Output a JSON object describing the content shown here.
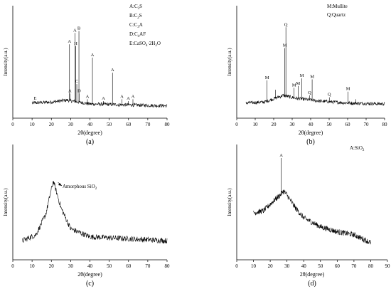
{
  "chart_data": [
    {
      "type": "line",
      "panel_label": "(a)",
      "xlabel": "2θ(degree)",
      "ylabel": "Intensity(a.u.)",
      "xlim": [
        0,
        80
      ],
      "xticks": [
        0,
        10,
        20,
        30,
        40,
        50,
        60,
        70,
        80
      ],
      "ylim": [
        0,
        100
      ],
      "legend": [
        "A:C3S",
        "B:C2S",
        "C:C3A",
        "D:C4AF",
        "E:CaSO4·2H2O"
      ],
      "baseline": [
        [
          10,
          10
        ],
        [
          20,
          11
        ],
        [
          28,
          13
        ],
        [
          40,
          9
        ],
        [
          60,
          8
        ],
        [
          80,
          7
        ]
      ],
      "peaks": [
        {
          "x": 11.6,
          "h": 12,
          "label": "E"
        },
        {
          "x": 29.4,
          "h": 72,
          "label": "A"
        },
        {
          "x": 29.6,
          "h": 20,
          "label": "A"
        },
        {
          "x": 32.2,
          "h": 84,
          "label": "A"
        },
        {
          "x": 32.6,
          "h": 70,
          "label": "H"
        },
        {
          "x": 33.2,
          "h": 30,
          "label": "C"
        },
        {
          "x": 34.3,
          "h": 86,
          "label": "B"
        },
        {
          "x": 34.4,
          "h": 20,
          "label": "D"
        },
        {
          "x": 38.7,
          "h": 14,
          "label": "A"
        },
        {
          "x": 41.3,
          "h": 58,
          "label": "A"
        },
        {
          "x": 47.0,
          "h": 12,
          "label": "A"
        },
        {
          "x": 51.7,
          "h": 42,
          "label": "A"
        },
        {
          "x": 56.6,
          "h": 14,
          "label": "A"
        },
        {
          "x": 59.9,
          "h": 12,
          "label": "A"
        },
        {
          "x": 62.3,
          "h": 14,
          "label": "A"
        }
      ]
    },
    {
      "type": "line",
      "panel_label": "(b)",
      "xlabel": "2θ(degree)",
      "ylabel": "Intensity(a.u.)",
      "xlim": [
        0,
        80
      ],
      "xticks": [
        0,
        10,
        20,
        30,
        40,
        50,
        60,
        70,
        80
      ],
      "ylim": [
        0,
        100
      ],
      "legend": [
        "M:Mullite",
        "Q:Quartz"
      ],
      "baseline": [
        [
          5,
          10
        ],
        [
          15,
          11
        ],
        [
          25,
          18
        ],
        [
          32,
          15
        ],
        [
          45,
          12
        ],
        [
          60,
          10
        ],
        [
          80,
          9
        ]
      ],
      "peaks": [
        {
          "x": 16.4,
          "h": 34,
          "label": "M"
        },
        {
          "x": 20.9,
          "h": 24,
          "label": ""
        },
        {
          "x": 26.0,
          "h": 68,
          "label": "M"
        },
        {
          "x": 26.6,
          "h": 90,
          "label": "Q"
        },
        {
          "x": 31.0,
          "h": 26,
          "label": "M"
        },
        {
          "x": 33.2,
          "h": 28,
          "label": "M"
        },
        {
          "x": 35.2,
          "h": 36,
          "label": "M"
        },
        {
          "x": 39.4,
          "h": 18,
          "label": "Q"
        },
        {
          "x": 40.8,
          "h": 35,
          "label": "M"
        },
        {
          "x": 50.1,
          "h": 16,
          "label": "Q"
        },
        {
          "x": 60.2,
          "h": 22,
          "label": "M"
        },
        {
          "x": 64.5,
          "h": 14,
          "label": ""
        }
      ]
    },
    {
      "type": "line",
      "panel_label": "(c)",
      "xlabel": "2θ(degree)",
      "ylabel": "Intensity(a.u.)",
      "xlim": [
        0,
        80
      ],
      "xticks": [
        0,
        10,
        20,
        30,
        40,
        50,
        60,
        70,
        80
      ],
      "ylim": [
        0,
        100
      ],
      "annotation": "Amorphous SiO2",
      "annotation_target": [
        22,
        72
      ],
      "baseline": [
        [
          5,
          12
        ],
        [
          12,
          18
        ],
        [
          17,
          38
        ],
        [
          21,
          72
        ],
        [
          25,
          45
        ],
        [
          30,
          24
        ],
        [
          40,
          16
        ],
        [
          60,
          14
        ],
        [
          80,
          12
        ]
      ],
      "peaks": []
    },
    {
      "type": "line",
      "panel_label": "(d)",
      "xlabel": "2θ(degree)",
      "ylabel": "Intensity(a.u.)",
      "xlim": [
        0,
        90
      ],
      "xticks": [
        0,
        10,
        20,
        30,
        40,
        50,
        60,
        70,
        80,
        90
      ],
      "ylim": [
        0,
        100
      ],
      "legend": [
        "A:SiO2"
      ],
      "baseline": [
        [
          10,
          40
        ],
        [
          16,
          42
        ],
        [
          22,
          52
        ],
        [
          26,
          58
        ],
        [
          28,
          62
        ],
        [
          30,
          58
        ],
        [
          35,
          45
        ],
        [
          40,
          35
        ],
        [
          50,
          26
        ],
        [
          60,
          21
        ],
        [
          70,
          18
        ],
        [
          80,
          10
        ]
      ],
      "peaks": [
        {
          "x": 26.6,
          "h": 95,
          "label": "A"
        }
      ]
    }
  ]
}
